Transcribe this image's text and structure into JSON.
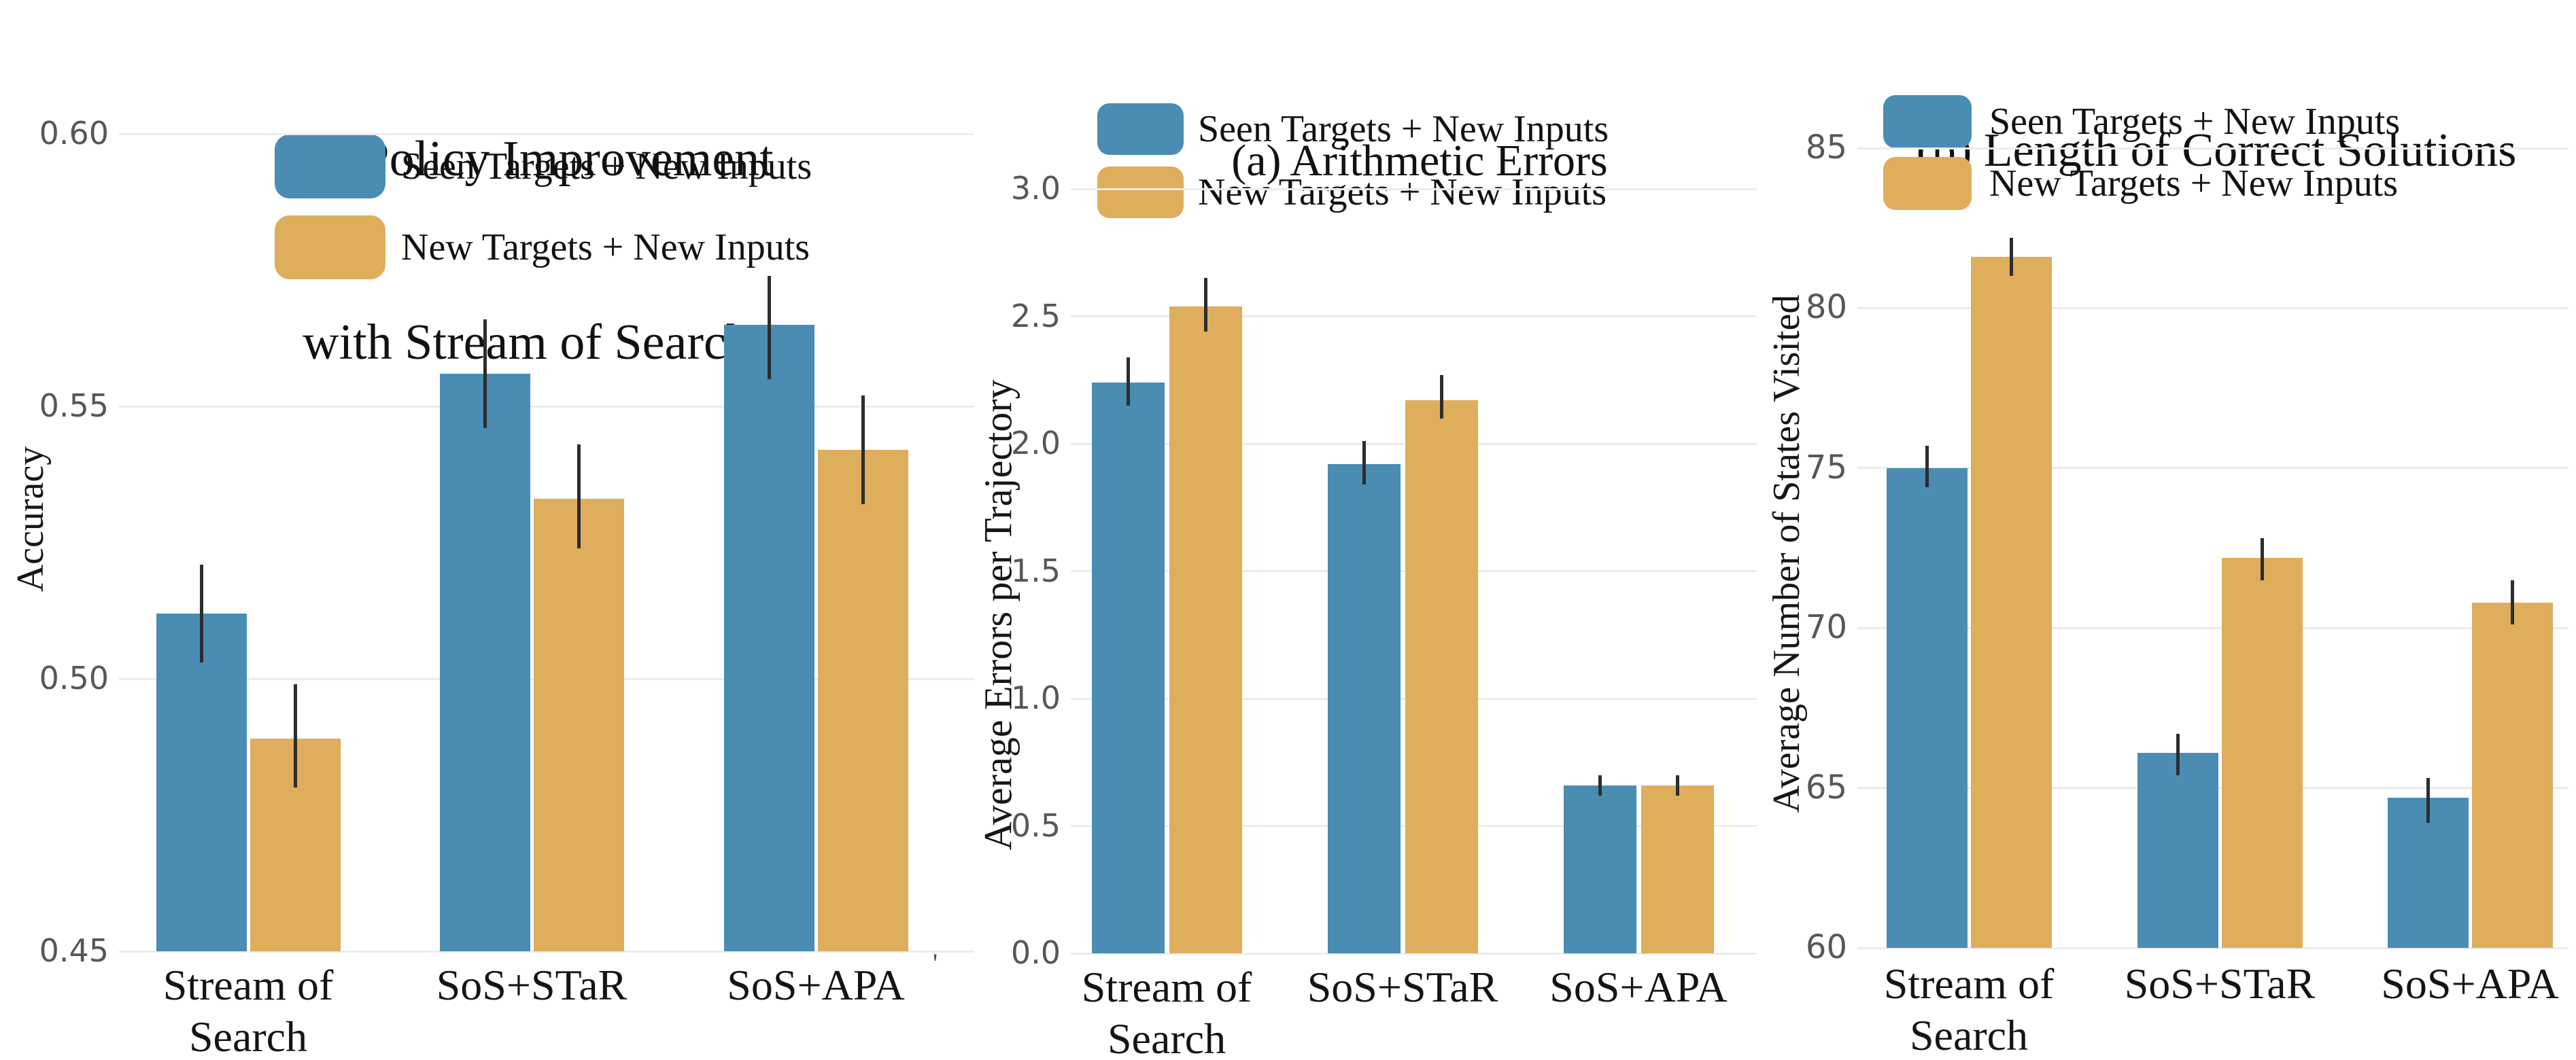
{
  "legend": {
    "seen_label": "Seen Targets + New Inputs",
    "new_label": "New Targets + New Inputs"
  },
  "colors": {
    "seen_series": "#4a8cb2",
    "new_series": "#deae5c",
    "gridline": "#ececec",
    "error_bar": "#2d2d2d",
    "ytick_text": "#575757",
    "xtick_text": "#141414",
    "title_text": "#111111",
    "background": "#ffffff"
  },
  "chart_data": [
    {
      "id": "policy-improvement",
      "type": "bar",
      "title_lines": [
        "(a)  Policy Improvement",
        "with Stream of Search"
      ],
      "ylabel": "Accuracy",
      "xlabel": "",
      "grid": "horizontal",
      "legend_position": "upper-left",
      "categories": [
        [
          "Stream of",
          "Search"
        ],
        [
          "SoS+STaR"
        ],
        [
          "SoS+APA"
        ]
      ],
      "series": [
        {
          "name": "Seen Targets + New Inputs",
          "values": [
            0.512,
            0.556,
            0.565
          ],
          "err_low": [
            0.503,
            0.546,
            0.555
          ],
          "err_high": [
            0.521,
            0.566,
            0.574
          ]
        },
        {
          "name": "New Targets + New Inputs",
          "values": [
            0.489,
            0.533,
            0.542
          ],
          "err_low": [
            0.48,
            0.524,
            0.532
          ],
          "err_high": [
            0.499,
            0.543,
            0.552
          ]
        }
      ],
      "yticks": [
        "0.45",
        "0.50",
        "0.55",
        "0.60"
      ],
      "ytick_values": [
        0.45,
        0.5,
        0.55,
        0.6
      ],
      "ylim": [
        0.45,
        0.615
      ],
      "stray_mark": "'"
    },
    {
      "id": "arithmetic-errors",
      "type": "bar",
      "title_lines": [
        "(a) Arithmetic Errors"
      ],
      "ylabel": "Average Errors per Trajectory",
      "xlabel": "",
      "grid": "horizontal",
      "legend_position": "upper-left",
      "categories": [
        [
          "Stream of",
          "Search"
        ],
        [
          "SoS+STaR"
        ],
        [
          "SoS+APA"
        ]
      ],
      "series": [
        {
          "name": "Seen Targets + New Inputs",
          "values": [
            2.24,
            1.92,
            0.66
          ],
          "err_low": [
            2.15,
            1.84,
            0.62
          ],
          "err_high": [
            2.34,
            2.01,
            0.7
          ]
        },
        {
          "name": "New Targets + New Inputs",
          "values": [
            2.54,
            2.17,
            0.66
          ],
          "err_low": [
            2.44,
            2.1,
            0.62
          ],
          "err_high": [
            2.65,
            2.27,
            0.7
          ]
        }
      ],
      "yticks": [
        "0.0",
        "0.5",
        "1.0",
        "1.5",
        "2.0",
        "2.5",
        "3.0"
      ],
      "ytick_values": [
        0.0,
        0.5,
        1.0,
        1.5,
        2.0,
        2.5,
        3.0
      ],
      "ylim": [
        0.0,
        3.15
      ],
      "stray_mark": ""
    },
    {
      "id": "length-of-correct-solutions",
      "type": "bar",
      "title_lines": [
        "(b) Length of Correct Solutions"
      ],
      "ylabel": "Average Number of States Visited",
      "xlabel": "",
      "grid": "horizontal",
      "legend_position": "upper-left",
      "categories": [
        [
          "Stream of",
          "Search"
        ],
        [
          "SoS+STaR"
        ],
        [
          "SoS+APA"
        ]
      ],
      "series": [
        {
          "name": "Seen Targets + New Inputs",
          "values": [
            75.0,
            66.1,
            64.7
          ],
          "err_low": [
            74.4,
            65.4,
            63.9
          ],
          "err_high": [
            75.7,
            66.7,
            65.3
          ]
        },
        {
          "name": "New Targets + New Inputs",
          "values": [
            81.6,
            72.2,
            70.8
          ],
          "err_low": [
            81.0,
            71.5,
            70.1
          ],
          "err_high": [
            82.2,
            72.8,
            71.5
          ]
        }
      ],
      "yticks": [
        "60",
        "65",
        "70",
        "75",
        "80",
        "85"
      ],
      "ytick_values": [
        60,
        65,
        70,
        75,
        80,
        85
      ],
      "ylim": [
        60,
        86.5
      ],
      "stray_mark": ""
    }
  ]
}
